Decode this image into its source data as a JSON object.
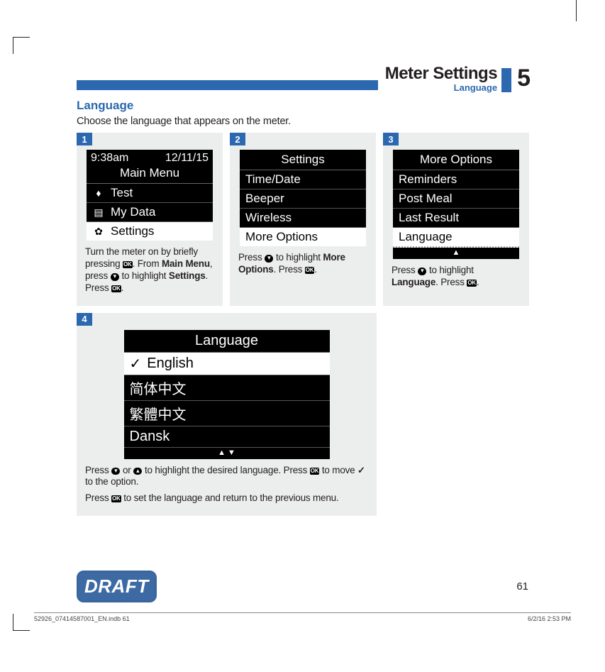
{
  "header": {
    "chapter_title": "Meter Settings",
    "subsection": "Language",
    "chapter_number": "5"
  },
  "section_heading": "Language",
  "intro_text": "Choose the language that appears on the meter.",
  "steps": {
    "s1": {
      "num": "1",
      "screen": {
        "time": "9:38am",
        "date": "12/11/15",
        "title": "Main Menu",
        "items": [
          {
            "icon": "drop",
            "label": "Test"
          },
          {
            "icon": "doc",
            "label": "My Data"
          },
          {
            "icon": "gear",
            "label": "Settings",
            "selected": true
          }
        ]
      },
      "text_parts": {
        "p1a": "Turn the meter on by briefly pressing ",
        "p1b": ". From ",
        "p1c": "Main Menu",
        "p1d": ", press ",
        "p1e": " to highlight ",
        "p1f": "Settings",
        "p1g": ". Press ",
        "p1h": "."
      }
    },
    "s2": {
      "num": "2",
      "screen": {
        "title": "Settings",
        "items": [
          {
            "label": "Time/Date"
          },
          {
            "label": "Beeper"
          },
          {
            "label": "Wireless"
          },
          {
            "label": "More Options",
            "selected": true
          }
        ]
      },
      "text_parts": {
        "a": "Press ",
        "b": " to highlight ",
        "c": "More Options",
        "d": ". Press ",
        "e": "."
      }
    },
    "s3": {
      "num": "3",
      "screen": {
        "title": "More Options",
        "items": [
          {
            "label": "Reminders"
          },
          {
            "label": "Post Meal"
          },
          {
            "label": "Last Result"
          },
          {
            "label": "Language",
            "selected": true,
            "dotted": true
          }
        ],
        "foot_arrow": "▲"
      },
      "text_parts": {
        "a": "Press ",
        "b": " to highlight ",
        "c": "Language",
        "d": ". Press ",
        "e": "."
      }
    },
    "s4": {
      "num": "4",
      "screen": {
        "title": "Language",
        "items": [
          {
            "label": "English",
            "selected": true,
            "check": true
          },
          {
            "label": "简体中文"
          },
          {
            "label": "繁體中文"
          },
          {
            "label": "Dansk"
          }
        ],
        "foot_arrows": "▲   ▼"
      },
      "text_parts": {
        "p1a": "Press ",
        "p1b": " or ",
        "p1c": " to highlight the desired language. Press ",
        "p1d": " to move ",
        "p1e": " to the option.",
        "p2a": "Press ",
        "p2b": " to set the language and return to the previous menu."
      }
    }
  },
  "icons": {
    "ok": "OK",
    "arrow_down": "▾",
    "arrow_up": "▴",
    "check": "✓"
  },
  "draft_label": "DRAFT",
  "page_number": "61",
  "footer": {
    "left": "52926_07414587001_EN.indb   61",
    "right": "6/2/16   2:53 PM"
  }
}
